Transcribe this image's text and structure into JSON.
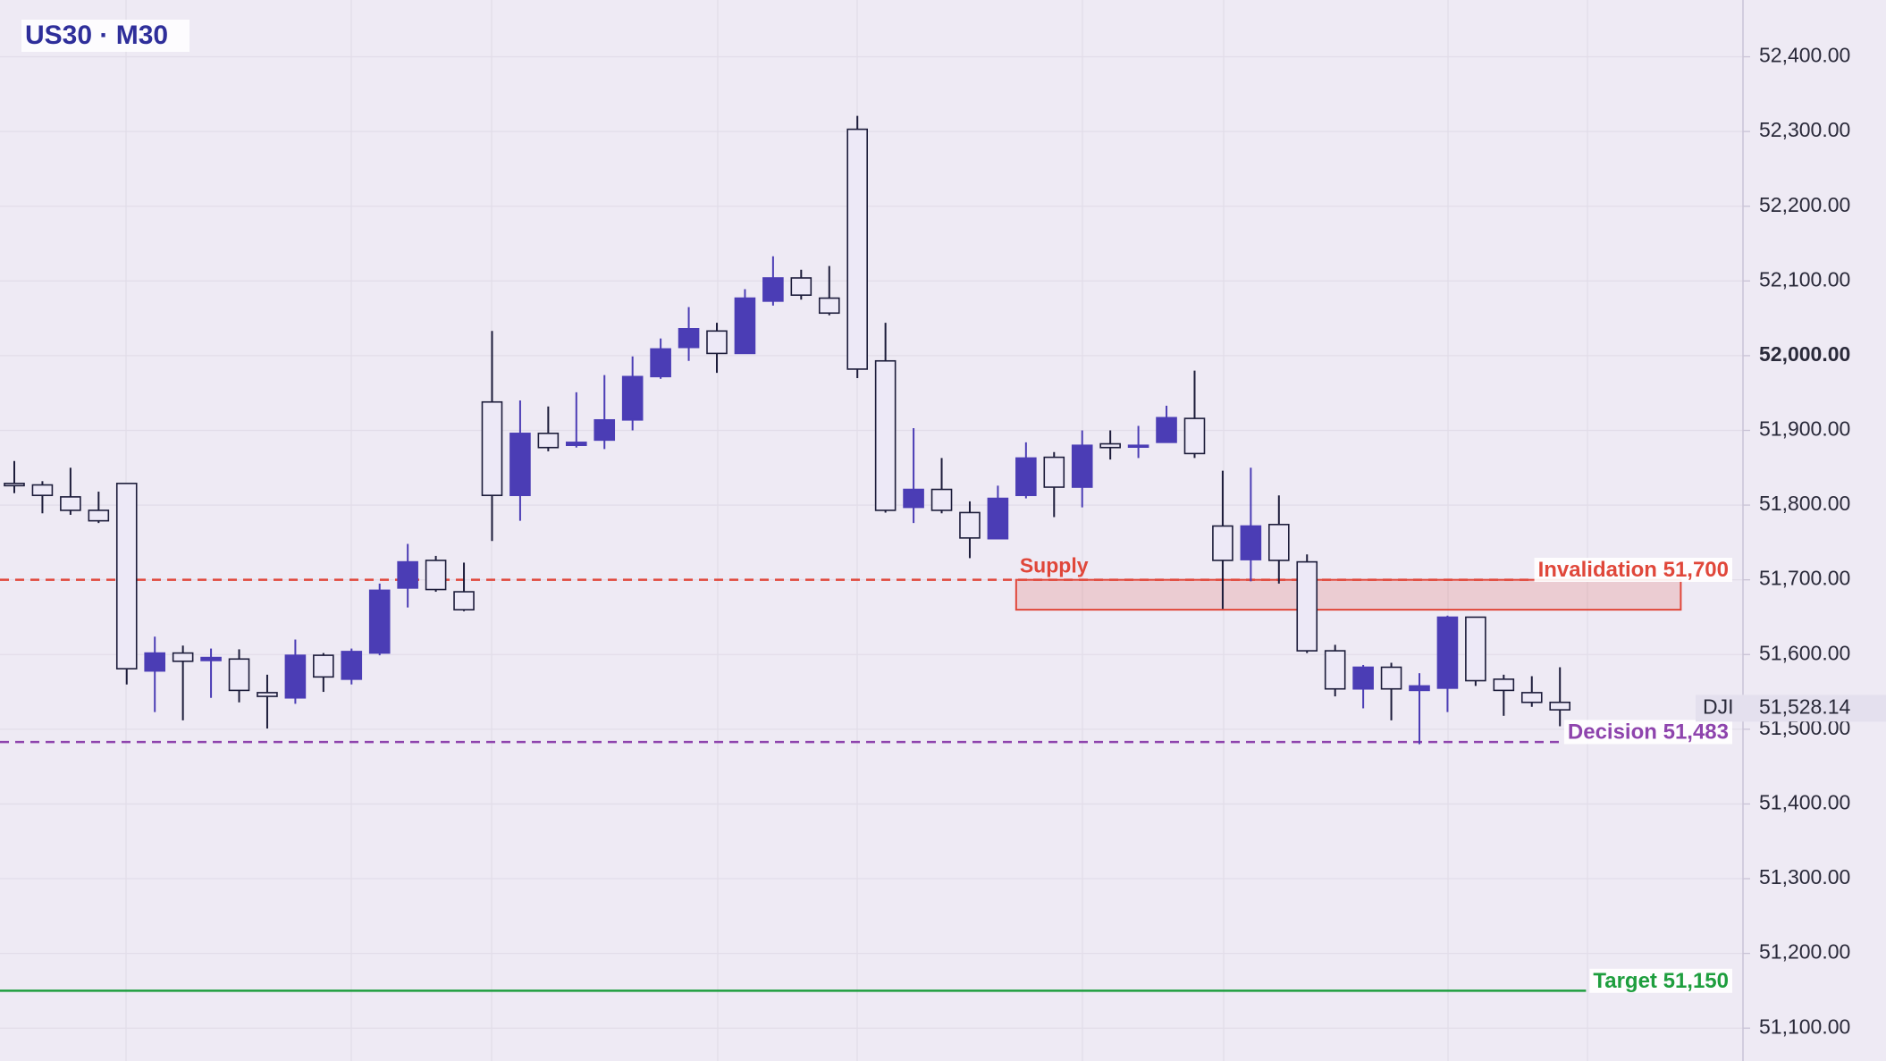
{
  "chart_data": {
    "type": "candlestick",
    "title": "US30 · M30",
    "up_color": "#4b3db5",
    "down_color": "#ede9f7",
    "open": [
      51829,
      51827,
      51811,
      51793,
      51829,
      51578,
      51602,
      51592,
      51594,
      51549,
      51542,
      51599,
      51567,
      51602,
      51689,
      51726,
      51684,
      51938,
      51813,
      51896,
      51880,
      51887,
      51914,
      51972,
      52011,
      52033,
      52003,
      52073,
      52104,
      52077,
      52303,
      51993,
      51797,
      51821,
      51790,
      51755,
      51813,
      51864,
      51824,
      51882,
      51879,
      51884,
      51916,
      51772,
      51727,
      51774,
      51724,
      51605,
      51554,
      51583,
      51552,
      51555,
      51650,
      51567,
      51549,
      51536
    ],
    "high": [
      51859,
      51832,
      51850,
      51818,
      51829,
      51624,
      51612,
      51608,
      51607,
      51573,
      51620,
      51602,
      51608,
      51695,
      51748,
      51732,
      51723,
      52033,
      51940,
      51932,
      51951,
      51974,
      51999,
      52023,
      52065,
      52044,
      52089,
      52133,
      52115,
      52120,
      52321,
      52044,
      51903,
      51863,
      51805,
      51826,
      51884,
      51871,
      51900,
      51900,
      51906,
      51933,
      51980,
      51846,
      51850,
      51813,
      51734,
      51613,
      51586,
      51589,
      51575,
      51652,
      51650,
      51573,
      51571,
      51583
    ],
    "low": [
      51816,
      51789,
      51787,
      51776,
      51560,
      51523,
      51512,
      51542,
      51536,
      51501,
      51534,
      51550,
      51560,
      51599,
      51663,
      51684,
      51658,
      51752,
      51779,
      51872,
      51877,
      51875,
      51900,
      51969,
      51993,
      51977,
      52003,
      52067,
      52075,
      52054,
      51970,
      51790,
      51776,
      51789,
      51729,
      51755,
      51809,
      51784,
      51797,
      51861,
      51863,
      51884,
      51863,
      51661,
      51698,
      51695,
      51602,
      51544,
      51528,
      51512,
      51480,
      51523,
      51558,
      51518,
      51530,
      51504
    ],
    "close": [
      51826,
      51813,
      51793,
      51779,
      51581,
      51602,
      51591,
      51596,
      51552,
      51544,
      51599,
      51570,
      51604,
      51686,
      51724,
      51687,
      51660,
      51813,
      51896,
      51877,
      51884,
      51914,
      51972,
      52009,
      52036,
      52003,
      52077,
      52104,
      52081,
      52057,
      51982,
      51793,
      51821,
      51793,
      51756,
      51809,
      51863,
      51824,
      51880,
      51877,
      51880,
      51917,
      51869,
      51726,
      51772,
      51726,
      51605,
      51554,
      51583,
      51554,
      51558,
      51650,
      51565,
      51552,
      51536,
      51526
    ],
    "ylim": [
      51056,
      52476
    ],
    "yticks": [
      {
        "value": 51100,
        "label": "51,100.00"
      },
      {
        "value": 51200,
        "label": "51,200.00"
      },
      {
        "value": 51300,
        "label": "51,300.00"
      },
      {
        "value": 51400,
        "label": "51,400.00"
      },
      {
        "value": 51500,
        "label": "51,500.00"
      },
      {
        "value": 51600,
        "label": "51,600.00"
      },
      {
        "value": 51700,
        "label": "51,700.00"
      },
      {
        "value": 51800,
        "label": "51,800.00"
      },
      {
        "value": 51900,
        "label": "51,900.00"
      },
      {
        "value": 52000,
        "label": "52,000.00",
        "bold": true
      },
      {
        "value": 52100,
        "label": "52,100.00"
      },
      {
        "value": 52200,
        "label": "52,200.00"
      },
      {
        "value": 52300,
        "label": "52,300.00"
      },
      {
        "value": 52400,
        "label": "52,400.00"
      }
    ],
    "grid": true,
    "levels": [
      {
        "label": "Invalidation 51,700",
        "value": 51700,
        "color": "#e0473a",
        "style": "dashed"
      },
      {
        "label": "Decision 51,483",
        "value": 51483,
        "color": "#8e44ad",
        "style": "dashed"
      },
      {
        "label": "Target 51,150",
        "value": 51150,
        "color": "#1e9e3e",
        "style": "solid"
      }
    ],
    "zone": {
      "label": "Supply",
      "range": [
        51660,
        51700
      ],
      "xrange": [
        36,
        59.3
      ],
      "color": "#e0473a"
    },
    "current_price": {
      "symbol": "DJI",
      "value": 51528.14,
      "label": "51,528.14"
    }
  }
}
